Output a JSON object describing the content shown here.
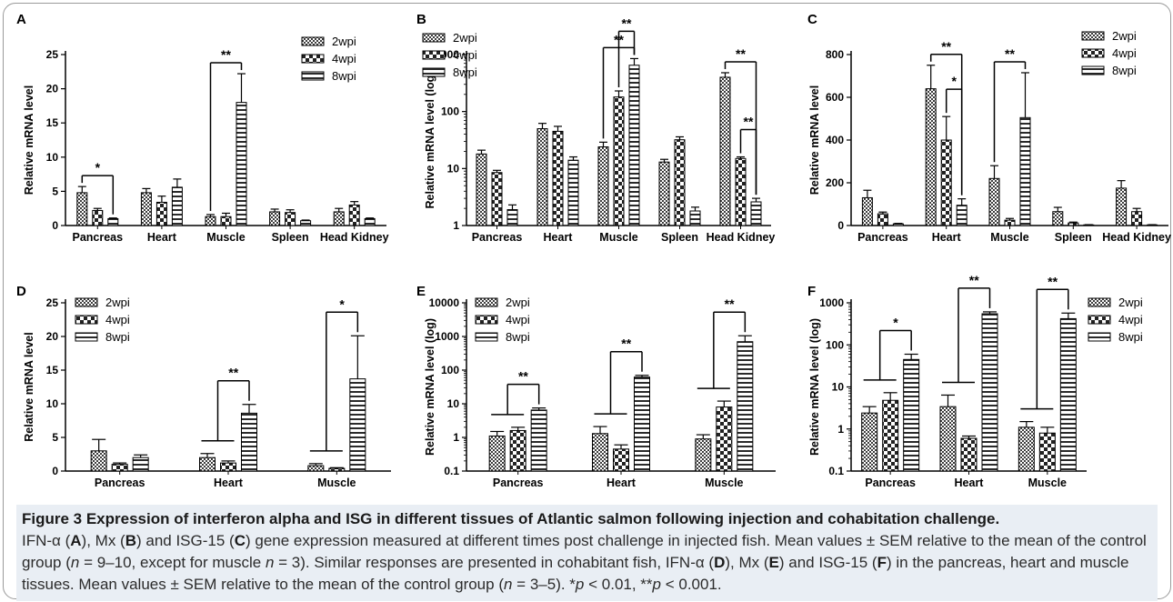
{
  "colors": {
    "frame": "#9a9a9a",
    "caption_bg": "#e9eef4",
    "bar_stroke": "#000000"
  },
  "legend_labels": [
    "2wpi",
    "4wpi",
    "8wpi"
  ],
  "chart_data": [
    {
      "panel": "A",
      "type": "bar",
      "ylabel": "Relative mRNA level",
      "scale": "linear",
      "ylim": [
        0,
        25
      ],
      "yticks": [
        "0",
        "5",
        "10",
        "15",
        "20",
        "25"
      ],
      "categories": [
        "Pancreas",
        "Heart",
        "Muscle",
        "Spleen",
        "Head Kidney"
      ],
      "legend_position": "top-right",
      "series": [
        {
          "name": "2wpi",
          "values": [
            4.8,
            4.8,
            1.3,
            2.0,
            2.0
          ],
          "errors": [
            0.9,
            0.6,
            0.3,
            0.4,
            0.5
          ]
        },
        {
          "name": "4wpi",
          "values": [
            2.2,
            3.4,
            1.3,
            1.9,
            3.0
          ],
          "errors": [
            0.3,
            0.9,
            0.5,
            0.4,
            0.5
          ]
        },
        {
          "name": "8wpi",
          "values": [
            1.0,
            5.6,
            18.0,
            0.7,
            1.0
          ],
          "errors": [
            0.1,
            1.2,
            4.2,
            0.1,
            0.1
          ]
        }
      ],
      "significance": [
        {
          "label": "*",
          "category": 0,
          "from": 0,
          "to": 2
        },
        {
          "label": "**",
          "category": 2,
          "from": 0,
          "to": 2
        }
      ]
    },
    {
      "panel": "B",
      "type": "bar",
      "ylabel": "Relative mRNA level (log)",
      "scale": "log",
      "ylim": [
        1,
        1000
      ],
      "yticks": [
        "1",
        "10",
        "100",
        "1000"
      ],
      "categories": [
        "Pancreas",
        "Heart",
        "Muscle",
        "Spleen",
        "Head Kidney"
      ],
      "legend_position": "top-left",
      "series": [
        {
          "name": "2wpi",
          "values": [
            18,
            50,
            24,
            13,
            400
          ],
          "errors": [
            3,
            12,
            5,
            1.5,
            80
          ]
        },
        {
          "name": "4wpi",
          "values": [
            8.5,
            45,
            180,
            32,
            15
          ],
          "errors": [
            0.8,
            10,
            50,
            4,
            1
          ]
        },
        {
          "name": "8wpi",
          "values": [
            1.9,
            14,
            650,
            1.8,
            2.6
          ],
          "errors": [
            0.4,
            2,
            200,
            0.3,
            0.4
          ]
        }
      ],
      "significance": [
        {
          "label": "**",
          "category": 2,
          "from": 0,
          "to": 2
        },
        {
          "label": "**",
          "category": 2,
          "from": 1,
          "to": 2
        },
        {
          "label": "**",
          "category": 4,
          "from": 0,
          "to": 2
        },
        {
          "label": "**",
          "category": 4,
          "from": 1,
          "to": 2
        }
      ]
    },
    {
      "panel": "C",
      "type": "bar",
      "ylabel": "Relative mRNA level",
      "scale": "linear",
      "ylim": [
        0,
        800
      ],
      "yticks": [
        "0",
        "200",
        "400",
        "600",
        "800"
      ],
      "categories": [
        "Pancreas",
        "Heart",
        "Muscle",
        "Spleen",
        "Head Kidney"
      ],
      "legend_position": "top-right",
      "series": [
        {
          "name": "2wpi",
          "values": [
            130,
            640,
            220,
            65,
            175
          ],
          "errors": [
            35,
            110,
            60,
            20,
            35
          ]
        },
        {
          "name": "4wpi",
          "values": [
            55,
            400,
            25,
            12,
            65
          ],
          "errors": [
            8,
            110,
            8,
            4,
            15
          ]
        },
        {
          "name": "8wpi",
          "values": [
            8,
            95,
            505,
            3,
            3
          ],
          "errors": [
            2,
            30,
            210,
            1,
            1
          ]
        }
      ],
      "significance": [
        {
          "label": "**",
          "category": 1,
          "from": 0,
          "to": 2
        },
        {
          "label": "*",
          "category": 1,
          "from": 1,
          "to": 2
        },
        {
          "label": "**",
          "category": 2,
          "from": 0,
          "to": 2
        }
      ]
    },
    {
      "panel": "D",
      "type": "bar",
      "ylabel": "Relative mRNA level",
      "scale": "linear",
      "ylim": [
        0,
        25
      ],
      "yticks": [
        "0",
        "5",
        "10",
        "15",
        "20",
        "25"
      ],
      "categories": [
        "Pancreas",
        "Heart",
        "Muscle"
      ],
      "legend_position": "top-left",
      "series": [
        {
          "name": "2wpi",
          "values": [
            3.0,
            2.0,
            0.8
          ],
          "errors": [
            1.7,
            0.6,
            0.3
          ]
        },
        {
          "name": "4wpi",
          "values": [
            1.0,
            1.2,
            0.4
          ],
          "errors": [
            0.2,
            0.3,
            0.1
          ]
        },
        {
          "name": "8wpi",
          "values": [
            2.0,
            8.6,
            13.7
          ],
          "errors": [
            0.4,
            1.3,
            6.4
          ]
        }
      ],
      "significance": [
        {
          "label": "**",
          "category": 1,
          "from": "group",
          "to": 2
        },
        {
          "label": "*",
          "category": 2,
          "from": "group",
          "to": 2
        }
      ]
    },
    {
      "panel": "E",
      "type": "bar",
      "ylabel": "Relative mRNA level (log)",
      "scale": "log",
      "ylim": [
        0.1,
        10000
      ],
      "yticks": [
        "0.1",
        "1",
        "10",
        "100",
        "1000",
        "10000"
      ],
      "categories": [
        "Pancreas",
        "Heart",
        "Muscle"
      ],
      "legend_position": "top-left",
      "series": [
        {
          "name": "2wpi",
          "values": [
            1.1,
            1.3,
            0.9
          ],
          "errors": [
            0.4,
            0.8,
            0.3
          ]
        },
        {
          "name": "4wpi",
          "values": [
            1.6,
            0.45,
            8
          ],
          "errors": [
            0.4,
            0.15,
            4
          ]
        },
        {
          "name": "8wpi",
          "values": [
            6.5,
            62,
            700
          ],
          "errors": [
            1,
            8,
            350
          ]
        }
      ],
      "significance": [
        {
          "label": "**",
          "category": 0,
          "from": "group",
          "to": 2
        },
        {
          "label": "**",
          "category": 1,
          "from": "group",
          "to": 2
        },
        {
          "label": "**",
          "category": 2,
          "from": "group",
          "to": 2
        }
      ]
    },
    {
      "panel": "F",
      "type": "bar",
      "ylabel": "Relative mRNA level (log)",
      "scale": "log",
      "ylim": [
        0.1,
        1000
      ],
      "yticks": [
        "0.1",
        "1",
        "10",
        "100",
        "1000"
      ],
      "categories": [
        "Pancreas",
        "Heart",
        "Muscle"
      ],
      "legend_position": "top-right",
      "series": [
        {
          "name": "2wpi",
          "values": [
            2.4,
            3.4,
            1.1
          ],
          "errors": [
            1,
            3,
            0.4
          ]
        },
        {
          "name": "4wpi",
          "values": [
            4.8,
            0.6,
            0.8
          ],
          "errors": [
            2.5,
            0.08,
            0.3
          ]
        },
        {
          "name": "8wpi",
          "values": [
            45,
            550,
            420
          ],
          "errors": [
            15,
            60,
            150
          ]
        }
      ],
      "significance": [
        {
          "label": "*",
          "category": 0,
          "from": "group",
          "to": 2
        },
        {
          "label": "**",
          "category": 1,
          "from": "group",
          "to": 2
        },
        {
          "label": "**",
          "category": 2,
          "from": "group",
          "to": 2
        }
      ]
    }
  ],
  "caption": {
    "title": "Figure 3 Expression of interferon alpha and ISG in different tissues of Atlantic salmon following injection and cohabitation challenge.",
    "s1": "IFN-α (",
    "A": "A",
    "s2": "), Mx (",
    "B": "B",
    "s3": ") and ISG-15 (",
    "C": "C",
    "s4": ") gene expression measured at different times post challenge in injected fish. Mean values ± SEM relative to the mean of the control group (",
    "n1": "n",
    "s5": " = 9–10, except for muscle ",
    "n2": "n",
    "s6": " = 3). Similar responses are presented in cohabitant fish, IFN-α (",
    "D": "D",
    "s7": "), Mx (",
    "E": "E",
    "s8": ") and ISG-15 (",
    "F": "F",
    "s9": ") in the pancreas, heart and muscle tissues. Mean values ± SEM relative to the mean of the control group (",
    "n3": "n",
    "s10": " = 3–5). *",
    "p1": "p",
    "s11": " < 0.01, **",
    "p2": "p",
    "s12": " < 0.001."
  }
}
